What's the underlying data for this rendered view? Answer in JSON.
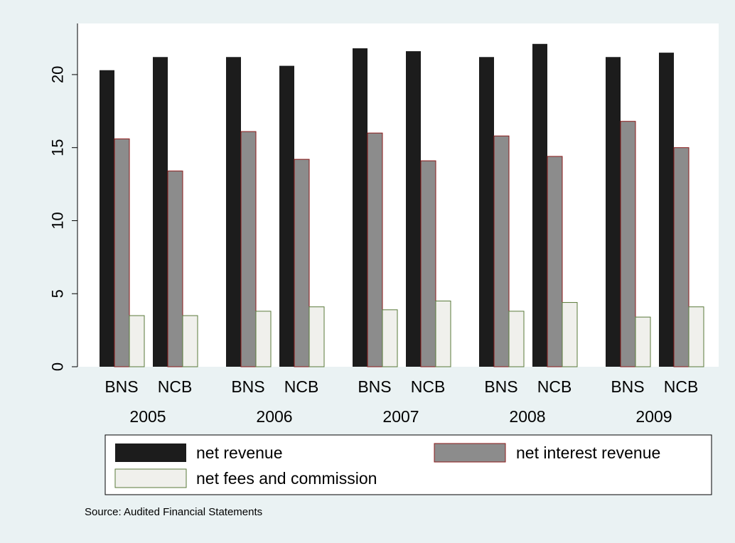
{
  "colors": {
    "background": "#eaf2f3",
    "plot_area": "#ffffff",
    "net_revenue": "#1c1c1c",
    "net_interest_revenue": "#8c8c8c",
    "net_fees_and_commission": "#f0f0ec",
    "net_interest_border": "#8b1a1a",
    "net_fees_border": "#5a7a3a"
  },
  "chart_data": {
    "type": "bar",
    "title": "",
    "xlabel": "",
    "ylabel": "",
    "ylim": [
      0,
      23.5
    ],
    "yticks": [
      0,
      5,
      10,
      15,
      20
    ],
    "grid": false,
    "legend_position": "bottom",
    "groups": [
      {
        "year": "2005",
        "categories": [
          "BNS",
          "NCB"
        ]
      },
      {
        "year": "2006",
        "categories": [
          "BNS",
          "NCB"
        ]
      },
      {
        "year": "2007",
        "categories": [
          "BNS",
          "NCB"
        ]
      },
      {
        "year": "2008",
        "categories": [
          "BNS",
          "NCB"
        ]
      },
      {
        "year": "2009",
        "categories": [
          "BNS",
          "NCB"
        ]
      }
    ],
    "series": [
      {
        "name": "net revenue",
        "color_key": "net_revenue",
        "values": [
          20.3,
          21.2,
          21.2,
          20.6,
          21.8,
          21.6,
          21.2,
          22.1,
          21.2,
          21.5
        ]
      },
      {
        "name": "net interest revenue",
        "color_key": "net_interest_revenue",
        "values": [
          15.6,
          13.4,
          16.1,
          14.2,
          16.0,
          14.1,
          15.8,
          14.4,
          16.8,
          15.0
        ]
      },
      {
        "name": "net fees and commission",
        "color_key": "net_fees_and_commission",
        "values": [
          3.5,
          3.5,
          3.8,
          4.1,
          3.9,
          4.5,
          3.8,
          4.4,
          3.4,
          4.1
        ]
      }
    ],
    "note": "Source: Audited Financial Statements"
  }
}
